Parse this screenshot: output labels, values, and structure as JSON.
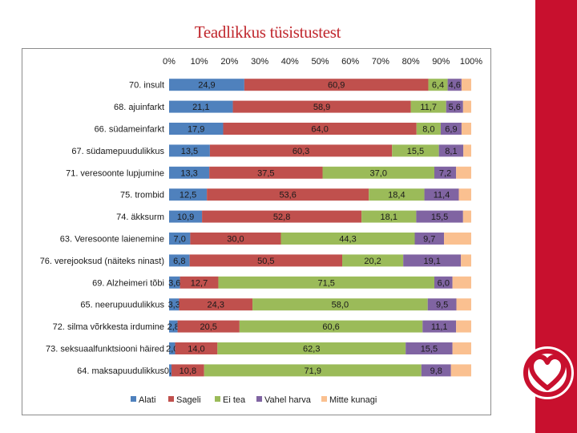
{
  "slide": {
    "title": "Teadlikkus tüsistustest"
  },
  "colors": {
    "series": [
      "#4f81bd",
      "#c0504d",
      "#9bbb59",
      "#8064a2",
      "#fac090"
    ],
    "accent": "#c8102e",
    "title": "#c0272d"
  },
  "chart_data": {
    "type": "bar",
    "orientation": "horizontal-stacked-100",
    "title": "",
    "xlabel": "",
    "ylabel": "",
    "xlim": [
      0,
      100
    ],
    "x_ticks": [
      "0%",
      "10%",
      "20%",
      "30%",
      "40%",
      "50%",
      "60%",
      "70%",
      "80%",
      "90%",
      "100%"
    ],
    "legend_position": "bottom",
    "categories": [
      "70. insult",
      "68. ajuinfarkt",
      "66. südameinfarkt",
      "67. südamepuudulikkus",
      "71. veresoonte lupjumine",
      "75. trombid",
      "74. äkksurm",
      "63. Veresoonte laienemine",
      "76. verejooksud (näiteks ninast)",
      "69. Alzheimeri tõbi",
      "65. neerupuudulikkus",
      "72. silma võrkkesta irdumine",
      "73. seksuaalfunktsiooni häired",
      "64. maksapuudulikkus"
    ],
    "series": [
      {
        "name": "Alati",
        "values": [
          24.9,
          21.1,
          17.9,
          13.5,
          13.3,
          12.5,
          10.9,
          7.0,
          6.8,
          3.6,
          3.3,
          2.8,
          2.0,
          0.8
        ],
        "labels": [
          "24,9",
          "21,1",
          "17,9",
          "13,5",
          "13,3",
          "12,5",
          "10,9",
          "7,0",
          "6,8",
          "3,6",
          "3,3",
          "2,8",
          "2,0",
          "0,8"
        ]
      },
      {
        "name": "Sageli",
        "values": [
          60.9,
          58.9,
          64.0,
          60.3,
          37.5,
          53.6,
          52.8,
          30.0,
          50.5,
          12.7,
          24.3,
          20.5,
          14.0,
          10.8
        ],
        "labels": [
          "60,9",
          "58,9",
          "64,0",
          "60,3",
          "37,5",
          "53,6",
          "52,8",
          "30,0",
          "50,5",
          "12,7",
          "24,3",
          "20,5",
          "14,0",
          "10,8"
        ]
      },
      {
        "name": "Ei tea",
        "values": [
          6.4,
          11.7,
          8.0,
          15.5,
          37.0,
          18.4,
          18.1,
          44.3,
          20.2,
          71.5,
          58.0,
          60.6,
          62.3,
          71.9
        ],
        "labels": [
          "6,4",
          "11,7",
          "8,0",
          "15,5",
          "37,0",
          "18,4",
          "18,1",
          "44,3",
          "20,2",
          "71,5",
          "58,0",
          "60,6",
          "62,3",
          "71,9"
        ]
      },
      {
        "name": "Vahel harva",
        "values": [
          4.6,
          5.6,
          6.9,
          8.1,
          7.2,
          11.4,
          15.5,
          9.7,
          19.1,
          6.0,
          9.5,
          11.1,
          15.5,
          9.8
        ],
        "labels": [
          "4,6",
          "5,6",
          "6,9",
          "8,1",
          "7,2",
          "11,4",
          "15,5",
          "9,7",
          "19,1",
          "6,0",
          "9,5",
          "11,1",
          "15,5",
          "9,8"
        ]
      },
      {
        "name": "Mitte kunagi",
        "values": [
          3.2,
          2.7,
          3.2,
          2.6,
          5.0,
          4.1,
          2.7,
          9.0,
          3.4,
          6.2,
          4.9,
          5.0,
          6.2,
          6.7
        ],
        "labels": [
          "",
          "",
          "",
          "",
          "",
          "",
          "",
          "",
          "",
          "",
          "",
          "",
          "",
          ""
        ]
      }
    ]
  }
}
